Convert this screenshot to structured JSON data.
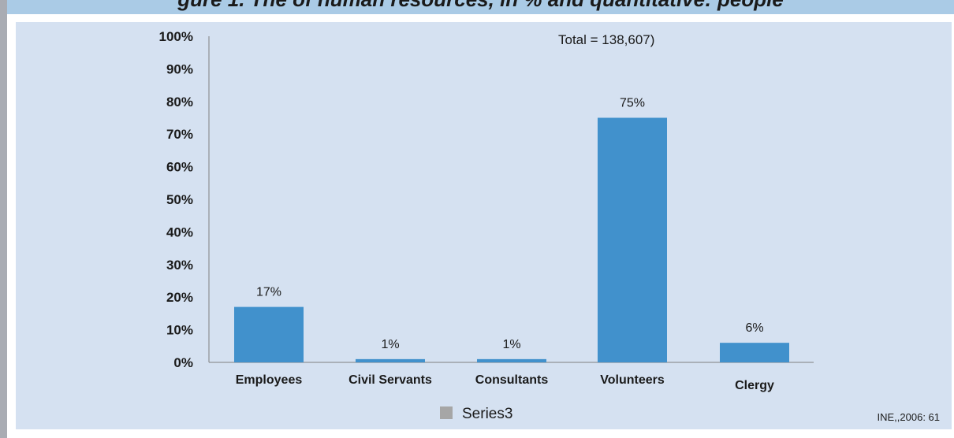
{
  "header": {
    "title_fragment": "gure 1. The  of human resources, in % and quantitative: people"
  },
  "chart_data": {
    "type": "bar",
    "categories": [
      "Employees",
      "Civil Servants",
      "Consultants",
      "Volunteers",
      "Clergy"
    ],
    "series": [
      {
        "name": "Series3",
        "values": [
          17,
          1,
          1,
          75,
          6
        ],
        "color": "#4191cc"
      }
    ],
    "data_labels": [
      "17%",
      "1%",
      "1%",
      "75%",
      "6%"
    ],
    "y_ticks": [
      "0%",
      "10%",
      "20%",
      "30%",
      "40%",
      "50%",
      "60%",
      "70%",
      "80%",
      "90%",
      "100%"
    ],
    "ylim": [
      0,
      100
    ],
    "annotation": "Total = 138,607)",
    "legend": {
      "label": "Series3",
      "color": "#a6a6a6",
      "position": "bottom"
    },
    "grid": false,
    "source": "INE,,2006: 61"
  }
}
